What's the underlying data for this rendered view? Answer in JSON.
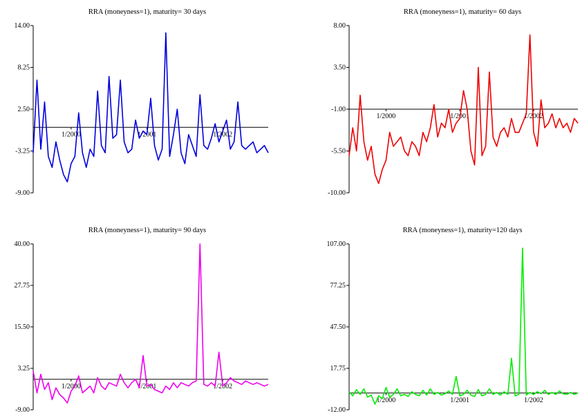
{
  "chart_data": [
    {
      "type": "line",
      "title": "RRA (moneyness=1), maturity= 30 days",
      "color": "#0000dd",
      "ylim": [
        -9.0,
        14.0
      ],
      "y_ticks": [
        "14.00",
        "8.25",
        "2.50",
        "-3.25",
        "-9.00"
      ],
      "y_tick_values": [
        14.0,
        8.25,
        2.5,
        -3.25,
        -9.0
      ],
      "x_ticks": [
        "1/2000",
        "1/2001",
        "1/2002"
      ],
      "x_tick_values": [
        2000.0,
        2001.0,
        2002.0
      ],
      "xlim": [
        1999.5,
        2002.6
      ],
      "reference_line": 0,
      "series": [
        {
          "x": [
            1999.5,
            1999.55,
            1999.6,
            1999.65,
            1999.7,
            1999.75,
            1999.8,
            1999.85,
            1999.9,
            1999.95,
            2000.0,
            2000.05,
            2000.1,
            2000.15,
            2000.2,
            2000.25,
            2000.3,
            2000.35,
            2000.4,
            2000.45,
            2000.5,
            2000.55,
            2000.6,
            2000.65,
            2000.7,
            2000.75,
            2000.8,
            2000.85,
            2000.9,
            2000.95,
            2001.0,
            2001.05,
            2001.1,
            2001.15,
            2001.2,
            2001.25,
            2001.3,
            2001.35,
            2001.4,
            2001.45,
            2001.5,
            2001.55,
            2001.6,
            2001.65,
            2001.7,
            2001.75,
            2001.8,
            2001.85,
            2001.9,
            2001.95,
            2002.0,
            2002.05,
            2002.1,
            2002.15,
            2002.2,
            2002.25,
            2002.3,
            2002.35,
            2002.4,
            2002.45,
            2002.5,
            2002.55,
            2002.6
          ],
          "y": [
            -3.5,
            6.5,
            -3.0,
            3.5,
            -4.0,
            -5.5,
            -2.0,
            -4.5,
            -6.5,
            -7.5,
            -5.0,
            -4.0,
            2.0,
            -3.5,
            -5.5,
            -3.0,
            -4.0,
            5.0,
            -2.5,
            -3.5,
            7.0,
            -1.5,
            -1.0,
            6.5,
            -2.0,
            -3.5,
            -3.0,
            1.0,
            -1.5,
            -0.5,
            -1.0,
            4.0,
            -2.5,
            -4.5,
            -3.0,
            13.0,
            -4.0,
            -1.0,
            2.5,
            -3.5,
            -5.0,
            -1.0,
            -2.5,
            -4.0,
            4.5,
            -2.5,
            -3.0,
            -1.5,
            0.5,
            -2.0,
            -0.5,
            1.0,
            -3.0,
            -2.0,
            3.5,
            -2.5,
            -3.0,
            -2.5,
            -2.0,
            -3.5,
            -3.0,
            -2.5,
            -3.5
          ]
        }
      ]
    },
    {
      "type": "line",
      "title": "RRA (moneyness=1), maturity= 60 days",
      "color": "#ee0000",
      "ylim": [
        -10.0,
        8.0
      ],
      "y_ticks": [
        "8.00",
        "3.50",
        "-1.00",
        "-5.50",
        "-10.00"
      ],
      "y_tick_values": [
        8.0,
        3.5,
        -1.0,
        -5.5,
        -10.0
      ],
      "x_ticks": [
        "1/2000",
        "1/2001",
        "1/2002"
      ],
      "x_tick_values": [
        2000.0,
        2001.0,
        2002.0
      ],
      "xlim": [
        1999.5,
        2002.6
      ],
      "reference_line": -1.0,
      "series": [
        {
          "x": [
            1999.5,
            1999.55,
            1999.6,
            1999.65,
            1999.7,
            1999.75,
            1999.8,
            1999.85,
            1999.9,
            1999.95,
            2000.0,
            2000.05,
            2000.1,
            2000.15,
            2000.2,
            2000.25,
            2000.3,
            2000.35,
            2000.4,
            2000.45,
            2000.5,
            2000.55,
            2000.6,
            2000.65,
            2000.7,
            2000.75,
            2000.8,
            2000.85,
            2000.9,
            2000.95,
            2001.0,
            2001.05,
            2001.1,
            2001.15,
            2001.2,
            2001.25,
            2001.3,
            2001.35,
            2001.4,
            2001.45,
            2001.5,
            2001.55,
            2001.6,
            2001.65,
            2001.7,
            2001.75,
            2001.8,
            2001.85,
            2001.9,
            2001.95,
            2002.0,
            2002.05,
            2002.1,
            2002.15,
            2002.2,
            2002.25,
            2002.3,
            2002.35,
            2002.4,
            2002.45,
            2002.5,
            2002.55,
            2002.6
          ],
          "y": [
            -6.0,
            -3.0,
            -5.5,
            0.5,
            -4.5,
            -6.5,
            -5.0,
            -8.0,
            -9.0,
            -7.5,
            -6.5,
            -3.5,
            -5.0,
            -4.5,
            -4.0,
            -5.5,
            -6.0,
            -4.5,
            -5.0,
            -6.0,
            -3.5,
            -4.5,
            -3.0,
            -0.5,
            -4.0,
            -2.5,
            -3.0,
            -1.0,
            -3.5,
            -2.5,
            -2.0,
            1.0,
            -1.0,
            -5.5,
            -7.0,
            3.5,
            -6.0,
            -5.0,
            3.0,
            -4.0,
            -5.0,
            -3.5,
            -3.0,
            -4.0,
            -2.0,
            -3.5,
            -3.5,
            -2.5,
            -1.5,
            7.0,
            -3.5,
            -5.0,
            0.0,
            -3.0,
            -2.5,
            -1.5,
            -3.0,
            -2.0,
            -3.0,
            -2.5,
            -3.5,
            -2.0,
            -2.5
          ]
        }
      ]
    },
    {
      "type": "line",
      "title": "RRA (moneyness=1), maturity= 90 days",
      "color": "#ee00ee",
      "ylim": [
        -9.0,
        40.0
      ],
      "y_ticks": [
        "40.00",
        "27.75",
        "15.50",
        "3.25",
        "-9.00"
      ],
      "y_tick_values": [
        40.0,
        27.75,
        15.5,
        3.25,
        -9.0
      ],
      "x_ticks": [
        "1/2000",
        "1/2001",
        "1/2002"
      ],
      "x_tick_values": [
        2000.0,
        2001.0,
        2002.0
      ],
      "xlim": [
        1999.5,
        2002.6
      ],
      "reference_line": 0,
      "series": [
        {
          "x": [
            1999.5,
            1999.55,
            1999.6,
            1999.65,
            1999.7,
            1999.75,
            1999.8,
            1999.85,
            1999.9,
            1999.95,
            2000.0,
            2000.05,
            2000.1,
            2000.15,
            2000.2,
            2000.25,
            2000.3,
            2000.35,
            2000.4,
            2000.45,
            2000.5,
            2000.55,
            2000.6,
            2000.65,
            2000.7,
            2000.75,
            2000.8,
            2000.85,
            2000.9,
            2000.95,
            2001.0,
            2001.05,
            2001.1,
            2001.15,
            2001.2,
            2001.25,
            2001.3,
            2001.35,
            2001.4,
            2001.45,
            2001.5,
            2001.55,
            2001.6,
            2001.65,
            2001.7,
            2001.75,
            2001.8,
            2001.85,
            2001.9,
            2001.95,
            2002.0,
            2002.05,
            2002.1,
            2002.15,
            2002.2,
            2002.25,
            2002.3,
            2002.35,
            2002.4,
            2002.45,
            2002.5,
            2002.55,
            2002.6
          ],
          "y": [
            2.5,
            -4.0,
            1.5,
            -3.0,
            -1.0,
            -6.0,
            -2.5,
            -4.5,
            -5.5,
            -7.0,
            -3.5,
            -2.0,
            1.0,
            -4.0,
            -3.0,
            -2.0,
            -4.0,
            0.5,
            -2.0,
            -3.0,
            -1.0,
            -1.5,
            -2.0,
            1.5,
            -1.0,
            -2.5,
            -1.0,
            0.0,
            -2.5,
            7.0,
            -2.0,
            -1.5,
            -3.0,
            -3.5,
            -4.0,
            -2.0,
            -3.0,
            -1.0,
            -2.5,
            -1.0,
            -1.5,
            -2.0,
            -1.0,
            -0.5,
            40.0,
            -1.5,
            -2.0,
            -1.0,
            -2.0,
            8.0,
            -2.0,
            -1.0,
            0.5,
            -0.5,
            -1.0,
            -1.5,
            -0.5,
            -1.0,
            -1.5,
            -1.0,
            -1.5,
            -2.0,
            -1.5
          ]
        }
      ]
    },
    {
      "type": "line",
      "title": "RRA (moneyness=1), maturity=120 days",
      "color": "#00ee00",
      "ylim": [
        -12.0,
        107.0
      ],
      "y_ticks": [
        "107.00",
        "77.25",
        "47.50",
        "17.75",
        "-12.00"
      ],
      "y_tick_values": [
        107.0,
        77.25,
        47.5,
        17.75,
        -12.0
      ],
      "x_ticks": [
        "1/2000",
        "1/2001",
        "1/2002"
      ],
      "x_tick_values": [
        2000.0,
        2001.0,
        2002.0
      ],
      "xlim": [
        1999.5,
        2002.6
      ],
      "reference_line": 0,
      "series": [
        {
          "x": [
            1999.5,
            1999.55,
            1999.6,
            1999.65,
            1999.7,
            1999.75,
            1999.8,
            1999.85,
            1999.9,
            1999.95,
            2000.0,
            2000.05,
            2000.1,
            2000.15,
            2000.2,
            2000.25,
            2000.3,
            2000.35,
            2000.4,
            2000.45,
            2000.5,
            2000.55,
            2000.6,
            2000.65,
            2000.7,
            2000.75,
            2000.8,
            2000.85,
            2000.9,
            2000.95,
            2001.0,
            2001.05,
            2001.1,
            2001.15,
            2001.2,
            2001.25,
            2001.3,
            2001.35,
            2001.4,
            2001.45,
            2001.5,
            2001.55,
            2001.6,
            2001.65,
            2001.7,
            2001.75,
            2001.8,
            2001.85,
            2001.9,
            2001.95,
            2002.0,
            2002.05,
            2002.1,
            2002.15,
            2002.2,
            2002.25,
            2002.3,
            2002.35,
            2002.4,
            2002.45,
            2002.5,
            2002.55,
            2002.6
          ],
          "y": [
            1.0,
            -2.0,
            2.5,
            -1.0,
            3.0,
            -3.0,
            -1.5,
            -8.0,
            -2.0,
            -4.0,
            4.0,
            -3.0,
            -1.0,
            3.0,
            -2.0,
            -1.0,
            -2.5,
            1.0,
            -1.0,
            -2.0,
            2.0,
            -1.5,
            3.0,
            -1.0,
            0.5,
            -1.5,
            -0.5,
            1.5,
            -1.0,
            12.0,
            -2.0,
            -1.0,
            2.0,
            -1.5,
            -2.5,
            2.5,
            -2.0,
            -1.0,
            3.0,
            -1.0,
            0.5,
            -1.5,
            1.0,
            -1.0,
            25.0,
            -2.0,
            -1.0,
            104.0,
            -1.5,
            0.5,
            -1.0,
            1.0,
            -0.5,
            2.0,
            -1.0,
            0.5,
            -1.0,
            1.5,
            -0.5,
            -1.0,
            0.5,
            -1.0,
            0.0
          ]
        }
      ]
    }
  ]
}
